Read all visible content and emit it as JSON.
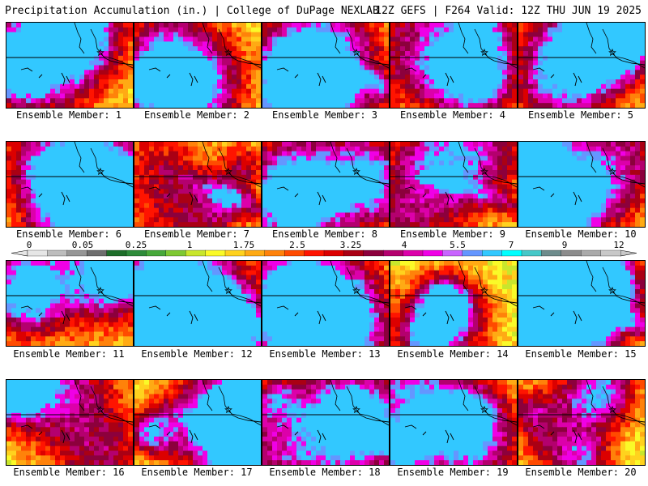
{
  "header": {
    "title": "Precipitation Accumulation (in.) | College of DuPage NEXLAB",
    "run_info": "12Z GEFS | F264 Valid: 12Z THU JUN 19 2025"
  },
  "panels": [
    {
      "label": "Ensemble Member: 1"
    },
    {
      "label": "Ensemble Member: 2"
    },
    {
      "label": "Ensemble Member: 3"
    },
    {
      "label": "Ensemble Member: 4"
    },
    {
      "label": "Ensemble Member: 5"
    },
    {
      "label": "Ensemble Member: 6"
    },
    {
      "label": "Ensemble Member: 7"
    },
    {
      "label": "Ensemble Member: 8"
    },
    {
      "label": "Ensemble Member: 9"
    },
    {
      "label": "Ensemble Member: 10"
    },
    {
      "label": "Ensemble Member: 11"
    },
    {
      "label": "Ensemble Member: 12"
    },
    {
      "label": "Ensemble Member: 13"
    },
    {
      "label": "Ensemble Member: 14"
    },
    {
      "label": "Ensemble Member: 15"
    },
    {
      "label": "Ensemble Member: 16"
    },
    {
      "label": "Ensemble Member: 17"
    },
    {
      "label": "Ensemble Member: 18"
    },
    {
      "label": "Ensemble Member: 19"
    },
    {
      "label": "Ensemble Member: 20"
    }
  ],
  "colorbar": {
    "tick_labels": [
      "0",
      "0.05",
      "0.25",
      "1",
      "1.75",
      "2.5",
      "3.25",
      "4",
      "5.5",
      "7",
      "9",
      "12"
    ],
    "colors": [
      "#e6e6e6",
      "#bdbdbd",
      "#969696",
      "#6e6e6e",
      "#1e6e2a",
      "#2e8b3a",
      "#47a83a",
      "#7ec832",
      "#c8e62c",
      "#fafa28",
      "#ffd21e",
      "#ffaa14",
      "#ff820a",
      "#ff4b00",
      "#ff1400",
      "#dc0000",
      "#aa0014",
      "#8c003c",
      "#b4006e",
      "#dc00aa",
      "#f000e6",
      "#c864ff",
      "#6496ff",
      "#32c8ff",
      "#00ffff",
      "#46c8c8",
      "#6e8c8c",
      "#8c8c8c",
      "#aaaaaa",
      "#c8c8c8"
    ]
  }
}
